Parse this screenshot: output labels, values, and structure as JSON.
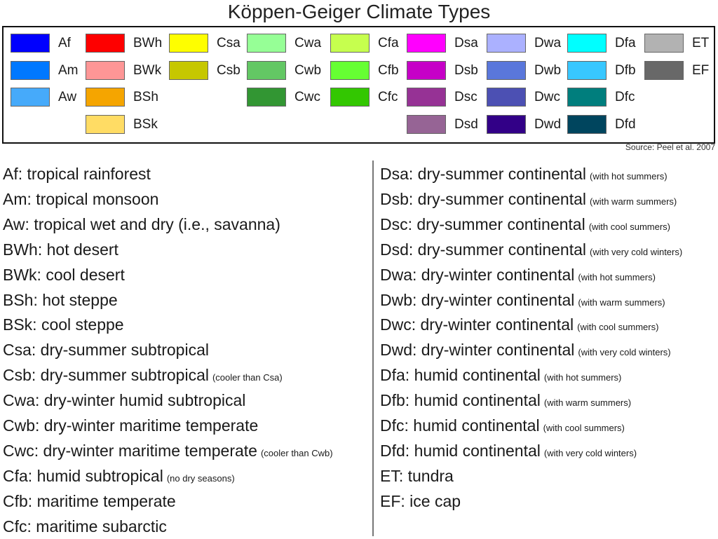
{
  "title": "Köppen-Geiger Climate Types",
  "source": "Source: Peel et al. 2007",
  "legend": {
    "columns": [
      [
        {
          "code": "Af",
          "color": "#0000fe"
        },
        {
          "code": "Am",
          "color": "#0078ff"
        },
        {
          "code": "Aw",
          "color": "#46aafa"
        }
      ],
      [
        {
          "code": "BWh",
          "color": "#fe0000"
        },
        {
          "code": "BWk",
          "color": "#fe9696"
        },
        {
          "code": "BSh",
          "color": "#f5a500"
        },
        {
          "code": "BSk",
          "color": "#ffdc64"
        }
      ],
      [
        {
          "code": "Csa",
          "color": "#fefe00"
        },
        {
          "code": "Csb",
          "color": "#c6c700"
        }
      ],
      [
        {
          "code": "Cwa",
          "color": "#96ff96"
        },
        {
          "code": "Cwb",
          "color": "#63c764"
        },
        {
          "code": "Cwc",
          "color": "#329633"
        }
      ],
      [
        {
          "code": "Cfa",
          "color": "#c6ff4e"
        },
        {
          "code": "Cfb",
          "color": "#66ff33"
        },
        {
          "code": "Cfc",
          "color": "#33c701"
        }
      ],
      [
        {
          "code": "Dsa",
          "color": "#ff00fe"
        },
        {
          "code": "Dsb",
          "color": "#c600c7"
        },
        {
          "code": "Dsc",
          "color": "#963295"
        },
        {
          "code": "Dsd",
          "color": "#966495"
        }
      ],
      [
        {
          "code": "Dwa",
          "color": "#abb1ff"
        },
        {
          "code": "Dwb",
          "color": "#5a77db"
        },
        {
          "code": "Dwc",
          "color": "#4c50b3"
        },
        {
          "code": "Dwd",
          "color": "#320087"
        }
      ],
      [
        {
          "code": "Dfa",
          "color": "#00ffff"
        },
        {
          "code": "Dfb",
          "color": "#38c7ff"
        },
        {
          "code": "Dfc",
          "color": "#007e7d"
        },
        {
          "code": "Dfd",
          "color": "#00455e"
        }
      ],
      [
        {
          "code": "ET",
          "color": "#b2b2b2"
        },
        {
          "code": "EF",
          "color": "#686868"
        }
      ]
    ]
  },
  "descriptions": {
    "left": [
      {
        "text": "Af: tropical rainforest",
        "note": ""
      },
      {
        "text": "Am: tropical monsoon",
        "note": ""
      },
      {
        "text": "Aw: tropical wet and dry (i.e., savanna)",
        "note": ""
      },
      {
        "text": "BWh: hot desert",
        "note": ""
      },
      {
        "text": "BWk: cool desert",
        "note": ""
      },
      {
        "text": "BSh: hot steppe",
        "note": ""
      },
      {
        "text": "BSk: cool steppe",
        "note": ""
      },
      {
        "text": "Csa: dry-summer subtropical",
        "note": ""
      },
      {
        "text": "Csb: dry-summer subtropical",
        "note": "(cooler than Csa)"
      },
      {
        "text": "Cwa: dry-winter humid subtropical",
        "note": ""
      },
      {
        "text": "Cwb: dry-winter maritime temperate",
        "note": ""
      },
      {
        "text": "Cwc: dry-winter maritime temperate",
        "note": "(cooler than Cwb)"
      },
      {
        "text": "Cfa: humid subtropical",
        "note": "(no dry seasons)"
      },
      {
        "text": "Cfb: maritime temperate",
        "note": ""
      },
      {
        "text": "Cfc: maritime subarctic",
        "note": ""
      }
    ],
    "right": [
      {
        "text": "Dsa: dry-summer continental",
        "note": "(with hot summers)"
      },
      {
        "text": "Dsb: dry-summer continental",
        "note": "(with warm summers)"
      },
      {
        "text": "Dsc: dry-summer continental",
        "note": "(with cool summers)"
      },
      {
        "text": "Dsd: dry-summer continental",
        "note": "(with very cold winters)"
      },
      {
        "text": "Dwa: dry-winter continental",
        "note": "(with hot summers)"
      },
      {
        "text": "Dwb: dry-winter continental",
        "note": "(with warm summers)"
      },
      {
        "text": "Dwc: dry-winter continental",
        "note": "(with cool summers)"
      },
      {
        "text": "Dwd: dry-winter continental",
        "note": "(with very cold winters)"
      },
      {
        "text": "Dfa: humid continental",
        "note": "(with hot summers)"
      },
      {
        "text": "Dfb: humid continental",
        "note": "(with warm summers)"
      },
      {
        "text": "Dfc: humid continental",
        "note": "(with cool summers)"
      },
      {
        "text": "Dfd: humid continental",
        "note": "(with very cold winters)"
      },
      {
        "text": "ET: tundra",
        "note": ""
      },
      {
        "text": "EF: ice cap",
        "note": ""
      }
    ]
  }
}
